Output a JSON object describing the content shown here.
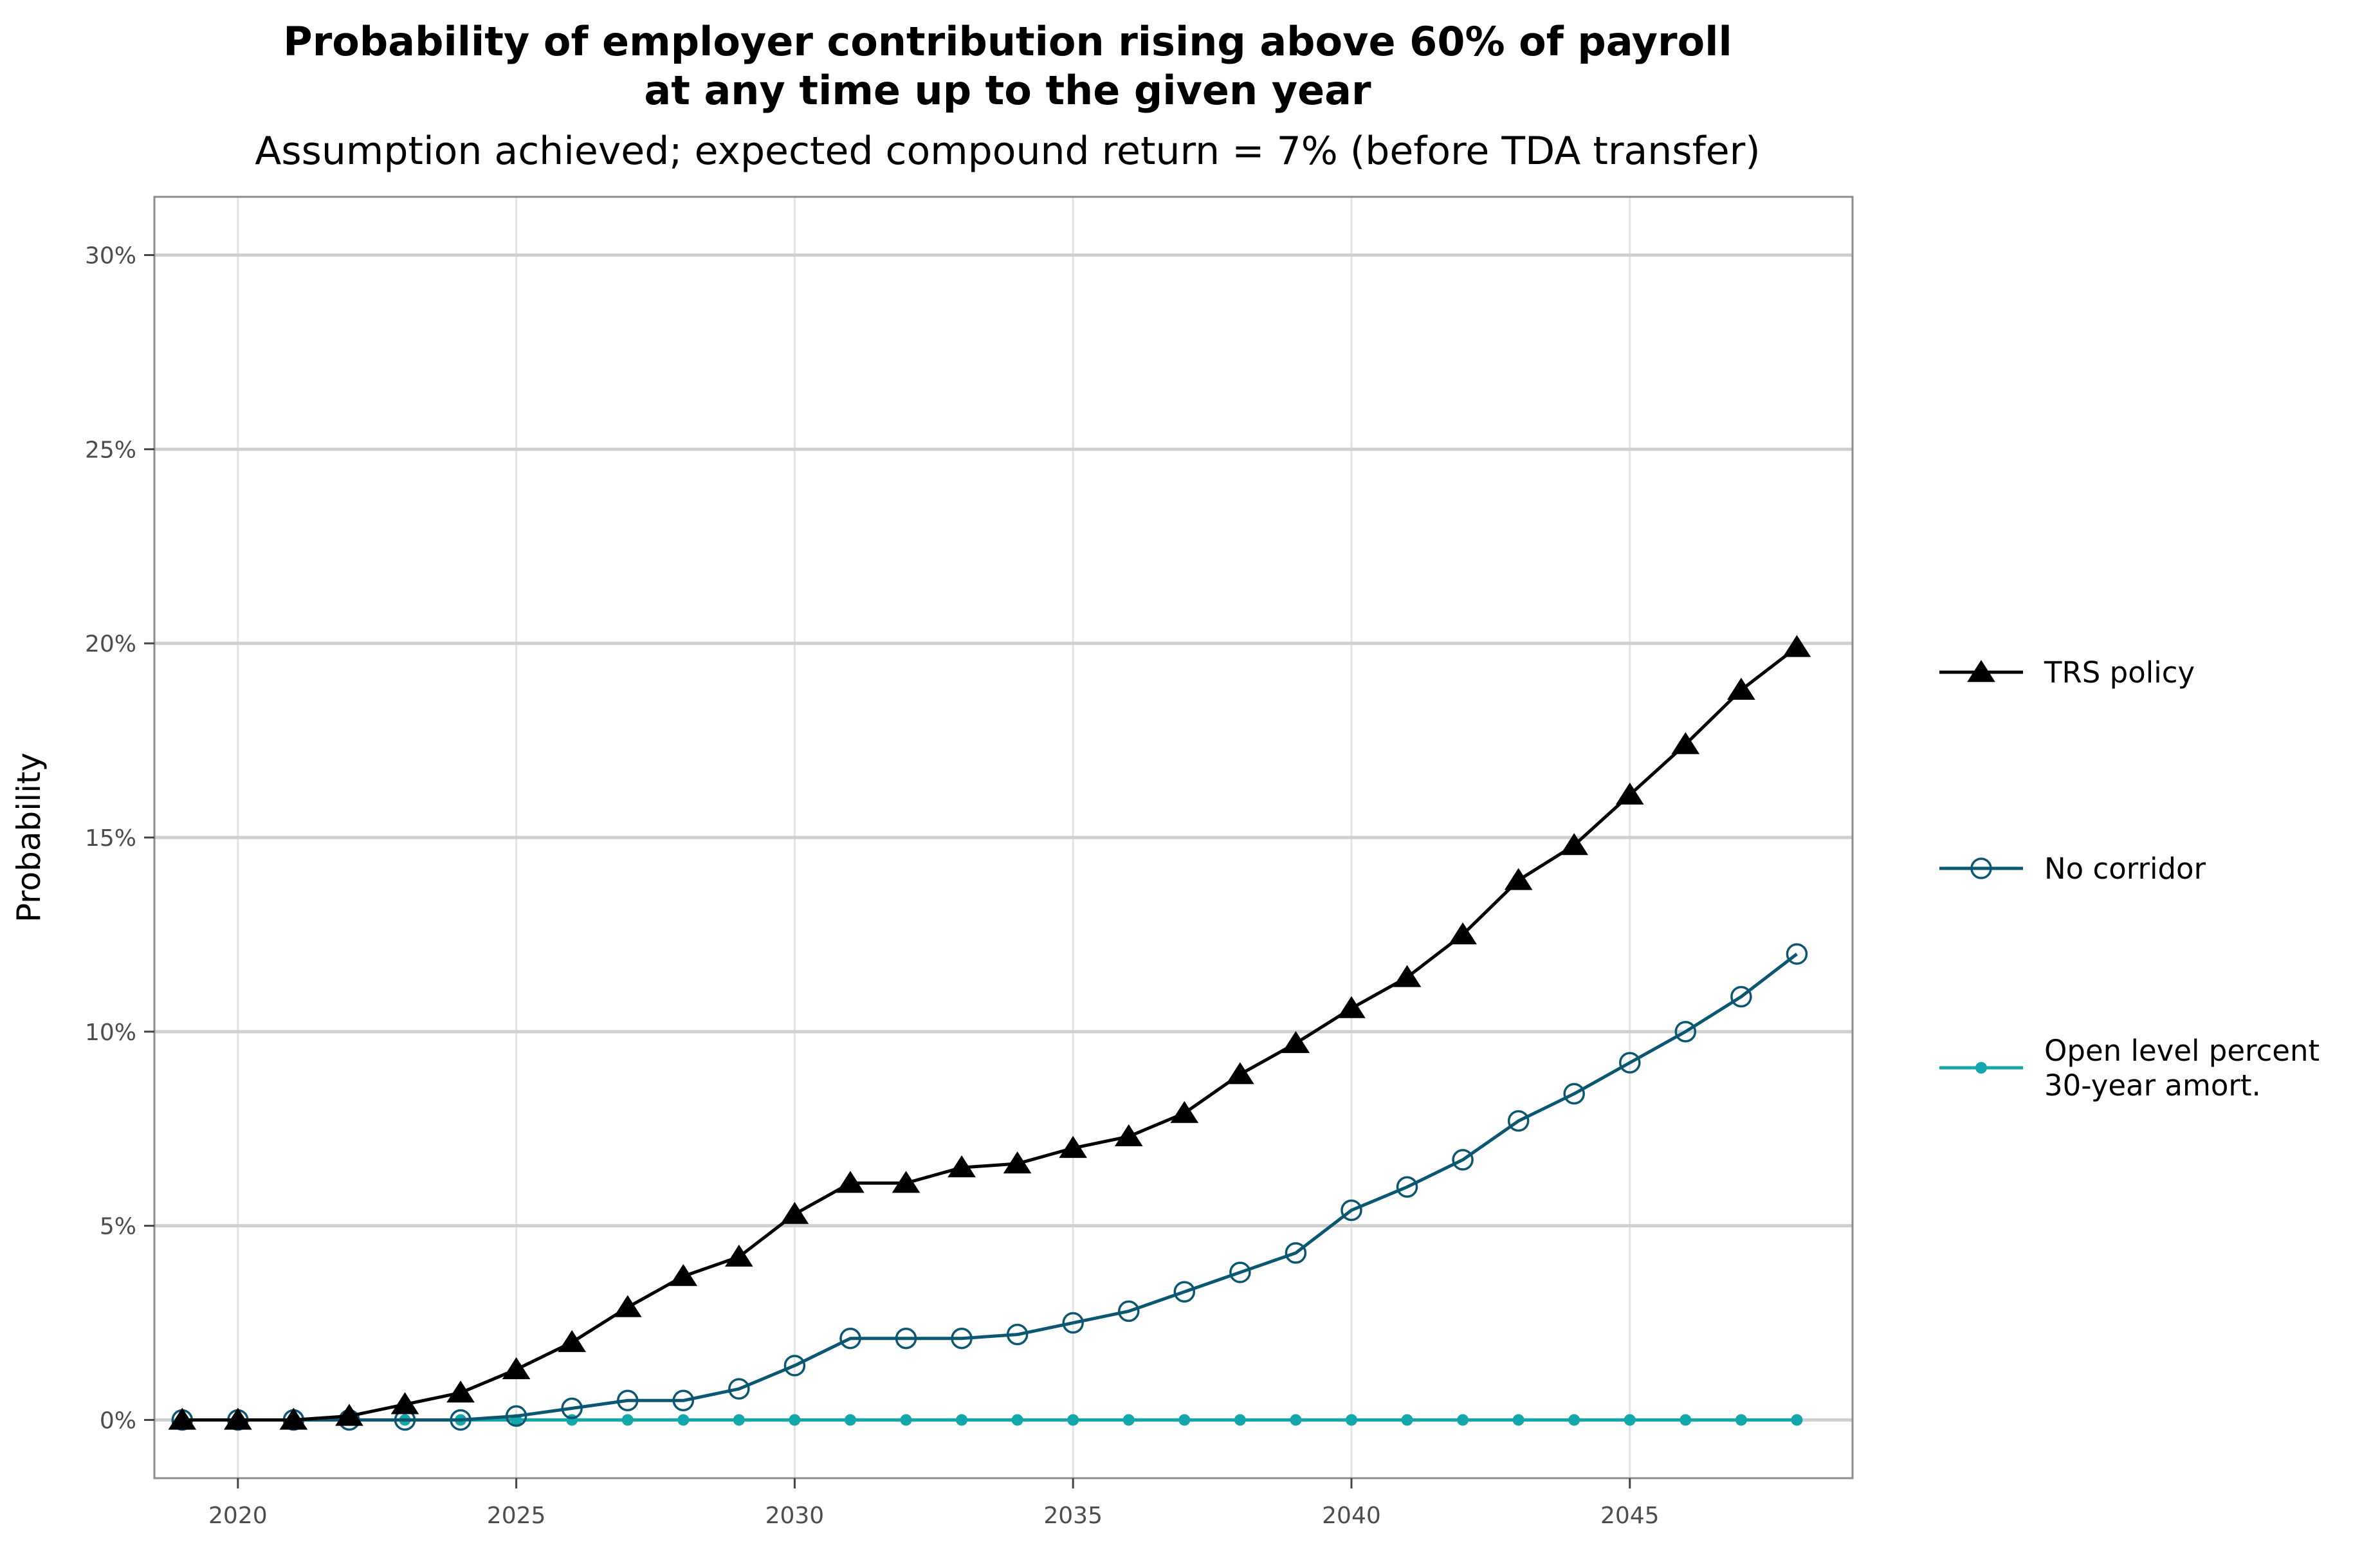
{
  "title_lines": [
    "Probability of employer contribution rising above 60% of payroll",
    "at any time up to the given year"
  ],
  "subtitle": "Assumption achieved; expected compound return = 7% (before TDA transfer)",
  "chart_data": {
    "type": "line",
    "title": "Probability of employer contribution rising above 60% of payroll at any time up to the given year",
    "subtitle": "Assumption achieved; expected compound return = 7% (before TDA transfer)",
    "xlabel": "",
    "ylabel": "Probability",
    "xlim": [
      2018.5,
      2049
    ],
    "ylim": [
      -1.5,
      31.5
    ],
    "x_ticks": [
      2020,
      2025,
      2030,
      2035,
      2040,
      2045
    ],
    "y_ticks": [
      0,
      5,
      10,
      15,
      20,
      25,
      30
    ],
    "y_tick_labels": [
      "0%",
      "5%",
      "10%",
      "15%",
      "20%",
      "25%",
      "30%"
    ],
    "grid": true,
    "legend_position": "right",
    "x": [
      2019,
      2020,
      2021,
      2022,
      2023,
      2024,
      2025,
      2026,
      2027,
      2028,
      2029,
      2030,
      2031,
      2032,
      2033,
      2034,
      2035,
      2036,
      2037,
      2038,
      2039,
      2040,
      2041,
      2042,
      2043,
      2044,
      2045,
      2046,
      2047,
      2048
    ],
    "series": [
      {
        "name": "TRS policy",
        "color": "#000000",
        "marker": "triangle",
        "values": [
          0.0,
          0.0,
          0.0,
          0.1,
          0.4,
          0.7,
          1.3,
          2.0,
          2.9,
          3.7,
          4.2,
          5.3,
          6.1,
          6.1,
          6.5,
          6.6,
          7.0,
          7.3,
          7.9,
          8.9,
          9.7,
          10.6,
          11.4,
          12.5,
          13.9,
          14.8,
          16.1,
          17.4,
          18.8,
          19.9
        ]
      },
      {
        "name": "No corridor",
        "color": "#0b5670",
        "marker": "open-circle",
        "values": [
          0.0,
          0.0,
          0.0,
          0.0,
          0.0,
          0.0,
          0.1,
          0.3,
          0.5,
          0.5,
          0.8,
          1.4,
          2.1,
          2.1,
          2.1,
          2.2,
          2.5,
          2.8,
          3.3,
          3.8,
          4.3,
          5.4,
          6.0,
          6.7,
          7.7,
          8.4,
          9.2,
          10.0,
          10.9,
          12.0
        ]
      },
      {
        "name": "Open level percent\n30-year amort.",
        "color": "#11a7ab",
        "marker": "filled-circle",
        "values": [
          0.0,
          0.0,
          0.0,
          0.0,
          0.0,
          0.0,
          0.0,
          0.0,
          0.0,
          0.0,
          0.0,
          0.0,
          0.0,
          0.0,
          0.0,
          0.0,
          0.0,
          0.0,
          0.0,
          0.0,
          0.0,
          0.0,
          0.0,
          0.0,
          0.0,
          0.0,
          0.0,
          0.0,
          0.0,
          0.0
        ]
      }
    ]
  }
}
